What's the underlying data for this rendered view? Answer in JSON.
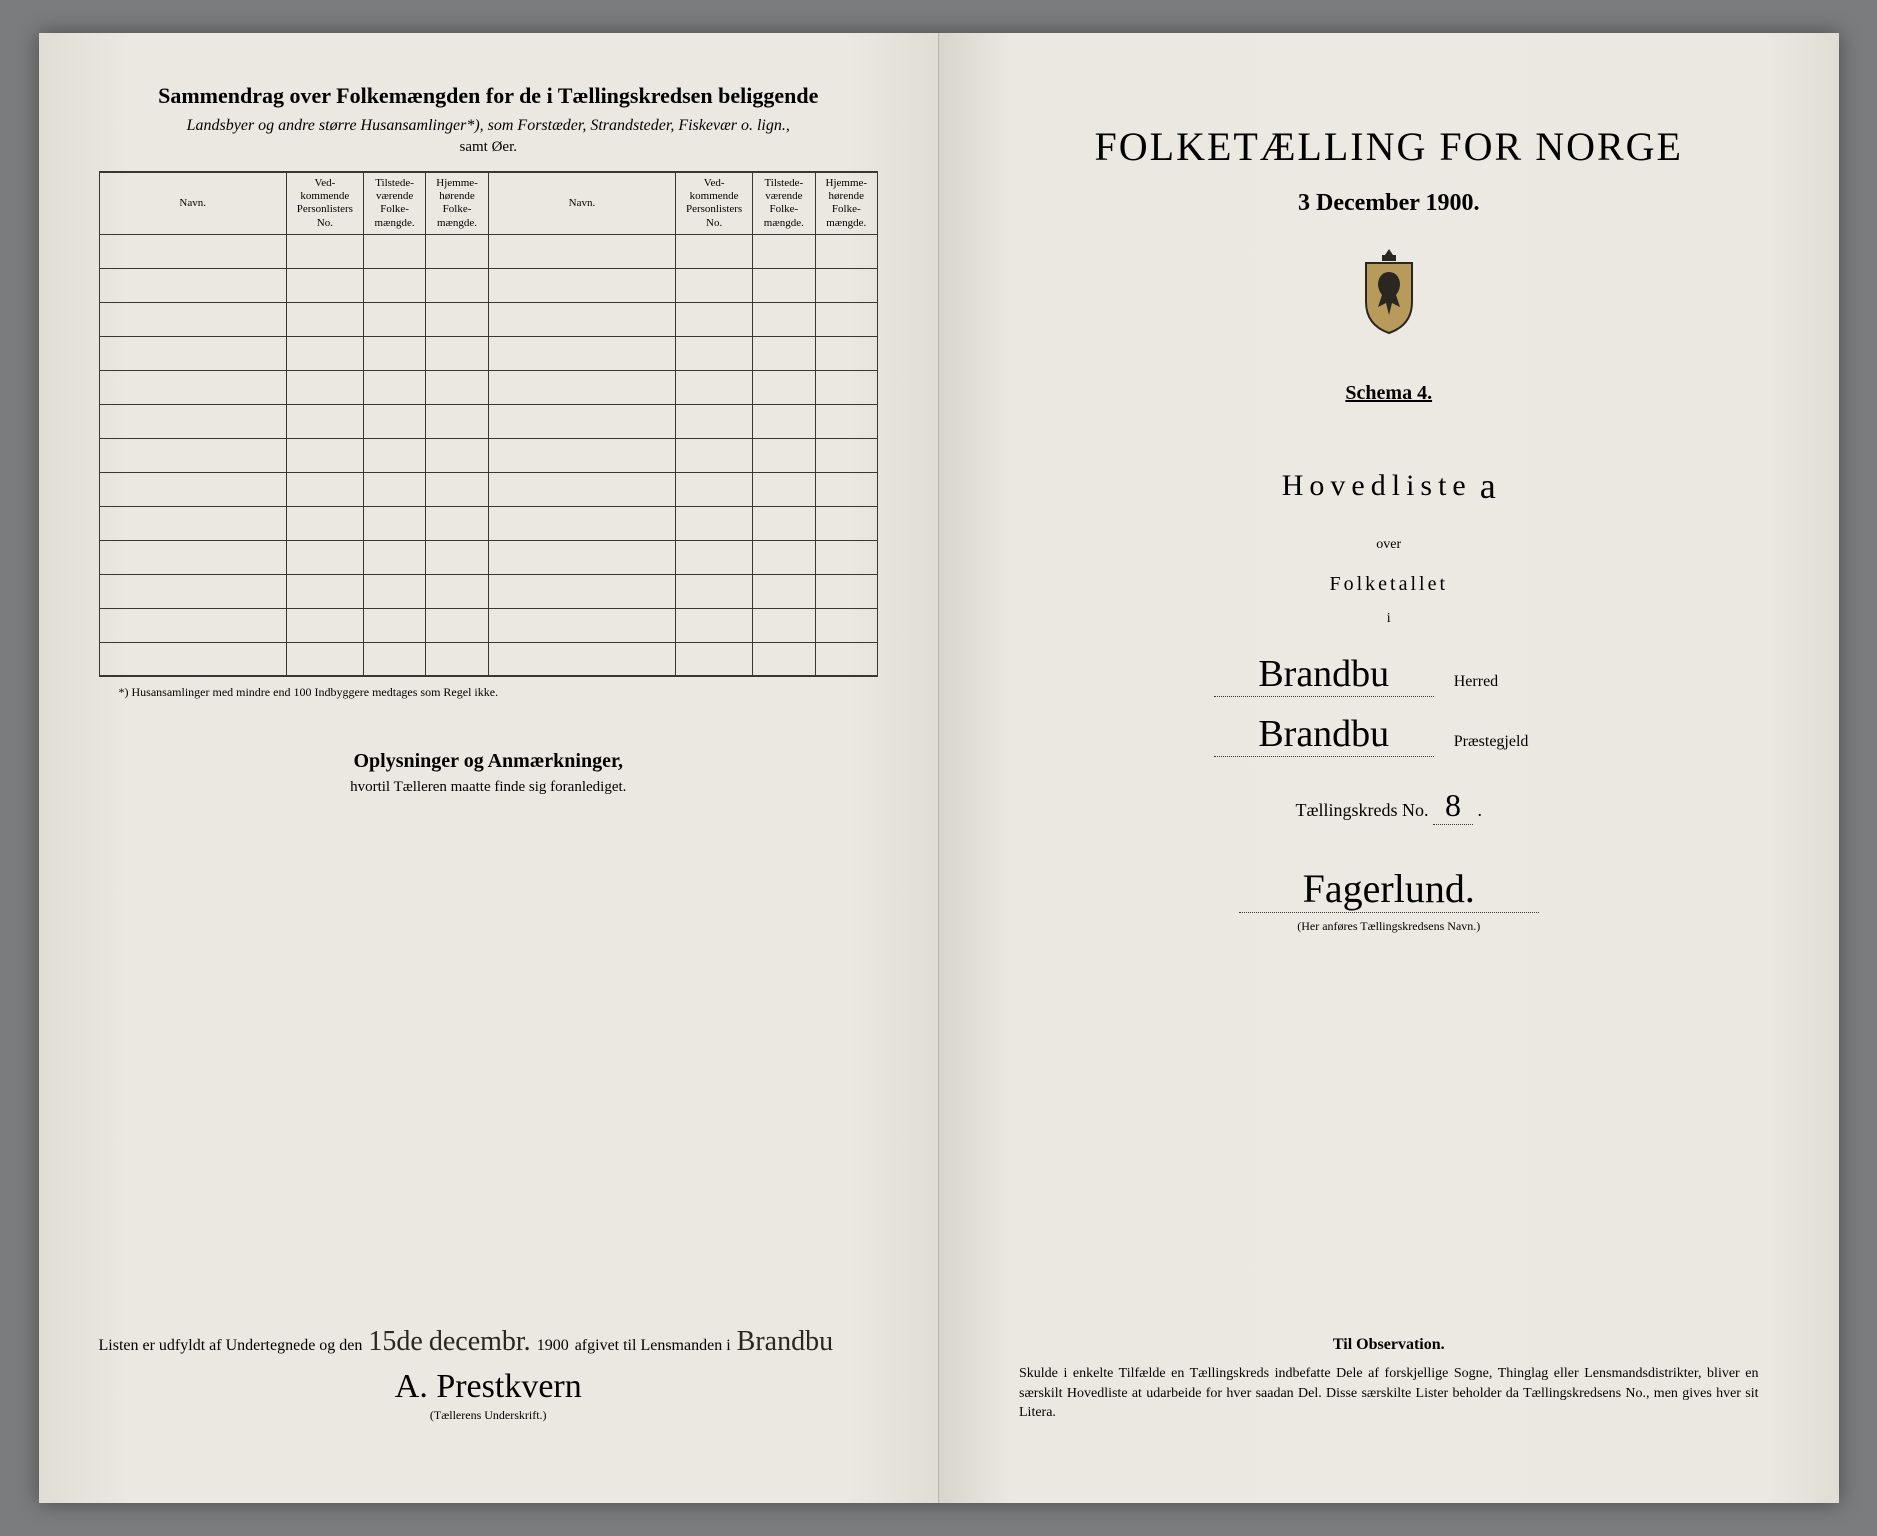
{
  "left": {
    "title": "Sammendrag over Folkemængden for de i Tællingskredsen beliggende",
    "subtitle_italic_prefix": "Landsbyer",
    "subtitle_rest": "og andre større Husansamlinger*), som Forstæder, Strandsteder, Fiskevær o. lign.,",
    "subtitle_samt": "samt Øer.",
    "columns": {
      "navn": "Navn.",
      "vedkommende": "Ved-\nkommende\nPersonlisters\nNo.",
      "tilstede": "Tilstede-\nværende\nFolke-\nmængde.",
      "hjemme": "Hjemme-\nhørende\nFolke-\nmængde."
    },
    "row_count": 13,
    "footnote": "*) Husansamlinger med mindre end 100 Indbyggere medtages som Regel ikke.",
    "oplys_title": "Oplysninger og Anmærkninger,",
    "oplys_sub": "hvortil Tælleren maatte finde sig foranlediget.",
    "sig_prefix": "Listen er udfyldt af Undertegnede og den",
    "sig_day": "15de",
    "sig_month": "decembr.",
    "sig_year": "1900",
    "sig_mid": "afgivet til Lensmanden i",
    "sig_place": "Brandbu",
    "sig_name": "A. Prestkvern",
    "sig_caption": "(Tællerens Underskrift.)"
  },
  "right": {
    "main_title": "FOLKETÆLLING FOR NORGE",
    "date": "3 December 1900.",
    "schema": "Schema 4.",
    "hovedliste": "Hovedliste",
    "hovedliste_mark": "a",
    "over": "over",
    "folketallet": "Folketallet",
    "i": "i",
    "herred_value": "Brandbu",
    "herred_label": "Herred",
    "praeste_value": "Brandbu",
    "praeste_label": "Præstegjeld",
    "kreds_prefix": "Tællingskreds No.",
    "kreds_no": "8",
    "kreds_name": "Fagerlund.",
    "kreds_caption": "(Her anføres Tællingskredsens Navn.)",
    "obs_title": "Til Observation.",
    "obs_text": "Skulde i enkelte Tilfælde en Tællingskreds indbefatte Dele af forskjellige Sogne, Thinglag eller Lensmandsdistrikter, bliver en særskilt Hovedliste at udarbeide for hver saadan Del. Disse særskilte Lister beholder da Tællingskredsens No., men gives hver sit Litera."
  },
  "colors": {
    "paper": "#eae8e1",
    "ink": "#2a2620",
    "border": "#3a3630"
  }
}
